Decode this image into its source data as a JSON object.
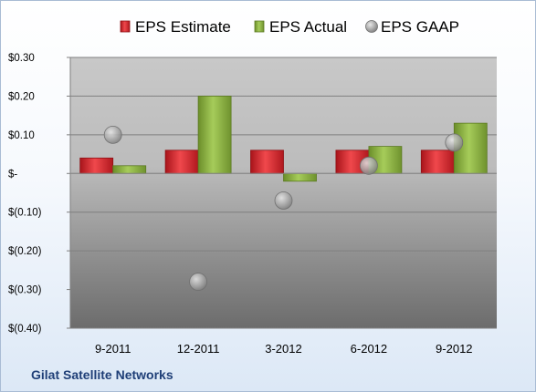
{
  "footer": {
    "company": "Gilat Satellite Networks"
  },
  "colors": {
    "estimate": "#d7262c",
    "actual": "#8ab23f",
    "gaap": "#9a9a9a",
    "footer_text": "#1f3f77"
  },
  "chart_data": {
    "type": "bar",
    "categories": [
      "9-2011",
      "12-2011",
      "3-2012",
      "6-2012",
      "9-2012"
    ],
    "series": [
      {
        "name": "EPS Estimate",
        "kind": "bar",
        "values": [
          0.04,
          0.06,
          0.06,
          0.06,
          0.06
        ]
      },
      {
        "name": "EPS Actual",
        "kind": "bar",
        "values": [
          0.02,
          0.2,
          -0.02,
          0.07,
          0.13
        ]
      },
      {
        "name": "EPS GAAP",
        "kind": "scatter",
        "values": [
          0.1,
          -0.28,
          -0.07,
          0.02,
          0.08
        ]
      }
    ],
    "ylim": [
      -0.4,
      0.3
    ],
    "yticks": [
      {
        "value": 0.3,
        "label": "$0.30"
      },
      {
        "value": 0.2,
        "label": "$0.20"
      },
      {
        "value": 0.1,
        "label": "$0.10"
      },
      {
        "value": 0.0,
        "label": "$-"
      },
      {
        "value": -0.1,
        "label": "$(0.10)"
      },
      {
        "value": -0.2,
        "label": "$(0.20)"
      },
      {
        "value": -0.3,
        "label": "$(0.30)"
      },
      {
        "value": -0.4,
        "label": "$(0.40)"
      }
    ],
    "grid": true,
    "legend_position": "top"
  }
}
